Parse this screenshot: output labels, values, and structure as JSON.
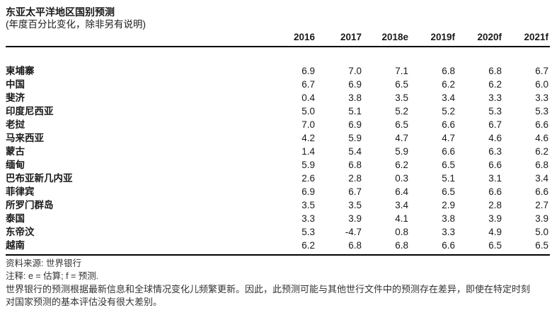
{
  "title": "东亚太平洋地区国别预测",
  "subtitle": "(年度百分比变化，除非另有说明)",
  "table": {
    "columns": [
      "2016",
      "2017",
      "2018e",
      "2019f",
      "2020f",
      "2021f"
    ],
    "rows": [
      {
        "country": "柬埔寨",
        "values": [
          "6.9",
          "7.0",
          "7.1",
          "6.8",
          "6.8",
          "6.7"
        ]
      },
      {
        "country": "中国",
        "values": [
          "6.7",
          "6.9",
          "6.5",
          "6.2",
          "6.2",
          "6.0"
        ]
      },
      {
        "country": "斐济",
        "values": [
          "0.4",
          "3.8",
          "3.5",
          "3.4",
          "3.3",
          "3.3"
        ]
      },
      {
        "country": "印度尼西亚",
        "values": [
          "5.0",
          "5.1",
          "5.2",
          "5.2",
          "5.3",
          "5.3"
        ]
      },
      {
        "country": "老挝",
        "values": [
          "7.0",
          "6.9",
          "6.5",
          "6.6",
          "6.7",
          "6.6"
        ]
      },
      {
        "country": "马来西亚",
        "values": [
          "4.2",
          "5.9",
          "4.7",
          "4.7",
          "4.6",
          "4.6"
        ]
      },
      {
        "country": "蒙古",
        "values": [
          "1.4",
          "5.4",
          "5.9",
          "6.6",
          "6.3",
          "6.2"
        ]
      },
      {
        "country": "缅甸",
        "values": [
          "5.9",
          "6.8",
          "6.2",
          "6.5",
          "6.6",
          "6.8"
        ]
      },
      {
        "country": "巴布亚新几内亚",
        "values": [
          "2.6",
          "2.8",
          "0.3",
          "5.1",
          "3.1",
          "3.4"
        ]
      },
      {
        "country": "菲律宾",
        "values": [
          "6.9",
          "6.7",
          "6.4",
          "6.5",
          "6.6",
          "6.6"
        ]
      },
      {
        "country": "所罗门群岛",
        "values": [
          "3.5",
          "3.5",
          "3.4",
          "2.9",
          "2.8",
          "2.7"
        ]
      },
      {
        "country": "泰国",
        "values": [
          "3.3",
          "3.9",
          "4.1",
          "3.8",
          "3.9",
          "3.9"
        ]
      },
      {
        "country": "东帝汶",
        "values": [
          "5.3",
          "-4.7",
          "0.8",
          "3.3",
          "4.9",
          "5.0"
        ]
      },
      {
        "country": "越南",
        "values": [
          "6.2",
          "6.8",
          "6.8",
          "6.6",
          "6.5",
          "6.5"
        ]
      }
    ]
  },
  "footer": {
    "source": "资料来源: 世界银行",
    "note": "注释: e = 估算; f = 预测.",
    "disclaimer": "世界银行的预测根据最新信息和全球情况变化儿频繁更新。因此，此预测可能与其他世行文件中的预测存在差异，即使在特定时刻对国家预测的基本评估没有很大差别。"
  },
  "colors": {
    "background": "#ffffff",
    "text": "#1a1a1a",
    "footer_text": "#333333",
    "rule": "#000000"
  }
}
